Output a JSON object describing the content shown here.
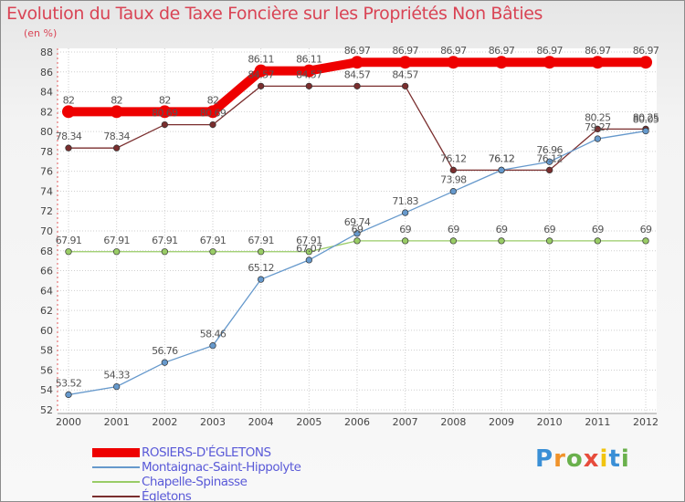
{
  "chart_data": {
    "type": "line",
    "title": "Evolution du Taux de Taxe Foncière sur les Propriétés Non Bâties",
    "subtitle": "(en %)",
    "xlabel": "",
    "ylabel": "",
    "categories": [
      "2000",
      "2001",
      "2002",
      "2003",
      "2004",
      "2005",
      "2006",
      "2007",
      "2008",
      "2009",
      "2010",
      "2011",
      "2012"
    ],
    "ylim": [
      52,
      88
    ],
    "yticks": [
      52,
      54,
      56,
      58,
      60,
      62,
      64,
      66,
      68,
      70,
      72,
      74,
      76,
      78,
      80,
      82,
      84,
      86,
      88
    ],
    "grid": true,
    "legend_position": "bottom-left",
    "series": [
      {
        "name": "ROSIERS-D'ÉGLETONS",
        "color": "#ee0000",
        "values": [
          82,
          82,
          82,
          82,
          86.11,
          86.11,
          86.97,
          86.97,
          86.97,
          86.97,
          86.97,
          86.97,
          86.97
        ],
        "labels": [
          "82",
          "82",
          "82",
          "82",
          "86.11",
          "86.11",
          "86.97",
          "86.97",
          "86.97",
          "86.97",
          "86.97",
          "86.97",
          "86.97"
        ]
      },
      {
        "name": "Montaignac-Saint-Hippolyte",
        "color": "#6699cc",
        "values": [
          53.52,
          54.33,
          56.76,
          58.46,
          65.12,
          67.07,
          69.74,
          71.83,
          73.98,
          76.12,
          76.96,
          79.27,
          80.05
        ],
        "labels": [
          "53.52",
          "54.33",
          "56.76",
          "58.46",
          "65.12",
          "67.07",
          "69.74",
          "71.83",
          "73.98",
          "76.12",
          "76.96",
          "79.27",
          "80.05"
        ]
      },
      {
        "name": "Chapelle-Spinasse",
        "color": "#99cc66",
        "values": [
          67.91,
          67.91,
          67.91,
          67.91,
          67.91,
          67.91,
          69,
          69,
          69,
          69,
          69,
          69,
          69
        ],
        "labels": [
          "67.91",
          "67.91",
          "67.91",
          "67.91",
          "67.91",
          "67.91",
          "69",
          "69",
          "69",
          "69",
          "69",
          "69",
          "69"
        ]
      },
      {
        "name": "Égletons",
        "color": "#7a2e2e",
        "values": [
          78.34,
          78.34,
          80.69,
          80.69,
          84.57,
          84.57,
          84.57,
          84.57,
          76.12,
          76.12,
          76.12,
          80.25,
          80.25
        ],
        "labels": [
          "78.34",
          "78.34",
          "80.69",
          "80.69",
          "84.57",
          "84.57",
          "84.57",
          "84.57",
          "76.12",
          "76.12",
          "76.12",
          "80.25",
          "80.25"
        ]
      }
    ]
  },
  "logo": {
    "letters": [
      "P",
      "r",
      "o",
      "x",
      "i",
      "t",
      "i"
    ],
    "colors": [
      "#3a8fd6",
      "#f0932b",
      "#6ab04c",
      "#e74c3c",
      "#f1c40f",
      "#3a8fd6",
      "#6ab04c"
    ]
  }
}
